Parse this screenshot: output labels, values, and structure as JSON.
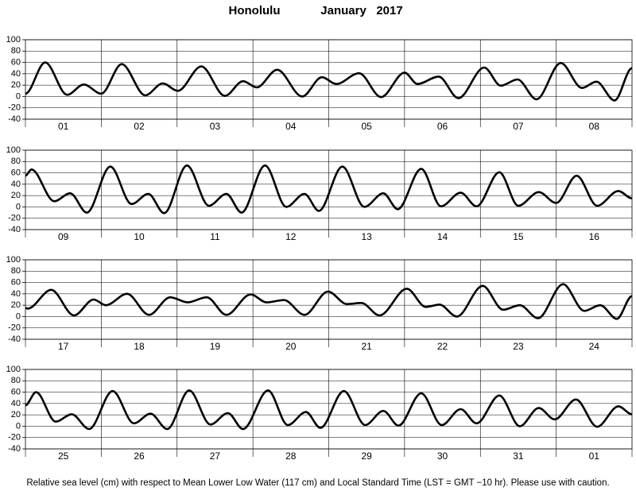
{
  "title": "Honolulu",
  "subtitle": "January   2017",
  "caption": "Relative sea level (cm) with respect to Mean Lower Low Water (117 cm) and Local Standard Time (LST = GMT −10 hr). Please use with caution.",
  "chart_data": [
    {
      "type": "line",
      "color": "#000000",
      "grid": true,
      "categories": [
        "01",
        "02",
        "03",
        "04",
        "05",
        "06",
        "07",
        "08"
      ],
      "xlim": [
        0,
        8
      ],
      "ylim": [
        -40,
        100
      ],
      "yticks": [
        -40,
        -20,
        0,
        20,
        40,
        60,
        80,
        100
      ],
      "x": [
        0,
        0.26,
        0.55,
        0.77,
        1.0,
        1.27,
        1.58,
        1.81,
        2.01,
        2.32,
        2.63,
        2.87,
        3.05,
        3.32,
        3.65,
        3.91,
        4.1,
        4.4,
        4.69,
        5.0,
        5.17,
        5.45,
        5.71,
        6.05,
        6.27,
        6.49,
        6.74,
        7.06,
        7.34,
        7.53,
        7.77,
        8.0
      ],
      "values": [
        5,
        60,
        3,
        21,
        5,
        57,
        2,
        23,
        10,
        53,
        1,
        27,
        16,
        47,
        0,
        34,
        22,
        41,
        -1,
        42,
        22,
        35,
        -3,
        51,
        19,
        30,
        -5,
        59,
        15,
        26,
        -7,
        50
      ]
    },
    {
      "type": "line",
      "color": "#000000",
      "grid": true,
      "categories": [
        "09",
        "10",
        "11",
        "12",
        "13",
        "14",
        "15",
        "16"
      ],
      "xlim": [
        0,
        8
      ],
      "ylim": [
        -40,
        100
      ],
      "yticks": [
        -40,
        -20,
        0,
        20,
        40,
        60,
        80,
        100
      ],
      "x": [
        0,
        0.08,
        0.38,
        0.59,
        0.81,
        1.12,
        1.4,
        1.62,
        1.83,
        2.13,
        2.42,
        2.65,
        2.85,
        3.16,
        3.44,
        3.68,
        3.87,
        4.18,
        4.47,
        4.72,
        4.91,
        5.22,
        5.48,
        5.74,
        5.95,
        6.25,
        6.5,
        6.77,
        7.0,
        7.27,
        7.54,
        7.82,
        8.0
      ],
      "values": [
        55,
        66,
        10,
        24,
        -10,
        71,
        5,
        23,
        -11,
        73,
        2,
        23,
        -10,
        73,
        0,
        23,
        -7,
        71,
        0,
        24,
        -4,
        67,
        1,
        25,
        1,
        61,
        2,
        26,
        7,
        55,
        2,
        28,
        15
      ]
    },
    {
      "type": "line",
      "color": "#000000",
      "grid": true,
      "categories": [
        "17",
        "18",
        "19",
        "20",
        "21",
        "22",
        "23",
        "24"
      ],
      "xlim": [
        0,
        8
      ],
      "ylim": [
        -40,
        100
      ],
      "yticks": [
        -40,
        -20,
        0,
        20,
        40,
        60,
        80,
        100
      ],
      "x": [
        0,
        0.03,
        0.34,
        0.64,
        0.9,
        1.06,
        1.34,
        1.63,
        1.91,
        2.14,
        2.39,
        2.65,
        2.97,
        3.18,
        3.41,
        3.68,
        3.99,
        4.24,
        4.43,
        4.67,
        5.03,
        5.28,
        5.46,
        5.69,
        6.03,
        6.3,
        6.52,
        6.76,
        7.09,
        7.37,
        7.58,
        7.8,
        8.0
      ],
      "values": [
        15,
        14,
        47,
        2,
        30,
        20,
        40,
        3,
        34,
        25,
        34,
        3,
        39,
        25,
        29,
        3,
        44,
        22,
        24,
        2,
        49,
        17,
        21,
        0,
        54,
        12,
        20,
        -3,
        57,
        10,
        20,
        -4,
        36
      ]
    },
    {
      "type": "line",
      "color": "#000000",
      "grid": true,
      "categories": [
        "25",
        "26",
        "27",
        "28",
        "29",
        "30",
        "31",
        "01"
      ],
      "xlim": [
        0,
        8
      ],
      "ylim": [
        -40,
        100
      ],
      "yticks": [
        -40,
        -20,
        0,
        20,
        40,
        60,
        80,
        100
      ],
      "x": [
        0,
        0.14,
        0.4,
        0.61,
        0.84,
        1.15,
        1.43,
        1.65,
        1.87,
        2.16,
        2.44,
        2.67,
        2.87,
        3.2,
        3.46,
        3.7,
        3.89,
        4.2,
        4.48,
        4.72,
        4.92,
        5.22,
        5.49,
        5.74,
        5.95,
        6.25,
        6.52,
        6.77,
        6.98,
        7.26,
        7.54,
        7.82,
        8.0
      ],
      "values": [
        37,
        60,
        8,
        21,
        -5,
        62,
        5,
        22,
        -5,
        63,
        3,
        23,
        -5,
        63,
        2,
        25,
        -3,
        62,
        2,
        27,
        1,
        58,
        2,
        30,
        5,
        54,
        0,
        32,
        12,
        47,
        -1,
        35,
        21
      ]
    }
  ]
}
